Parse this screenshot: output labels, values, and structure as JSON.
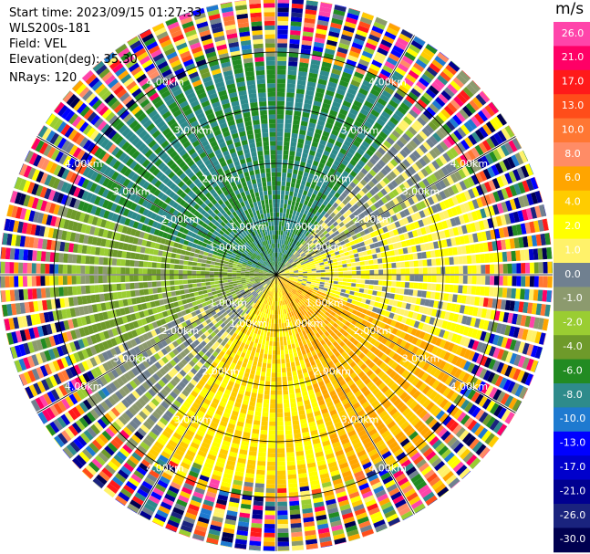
{
  "header": {
    "start_time": "Start time: 2023/09/15 01:27:33",
    "instrument": "WLS200s-181",
    "field": "Field: VEL",
    "elevation": "Elevation(deg): 35.30",
    "nrays": "NRays: 120"
  },
  "chart_data": {
    "type": "heatmap",
    "projection": "polar PPI",
    "title": "",
    "rays": 120,
    "range_rings": [
      {
        "label": "1.00km",
        "km": 1
      },
      {
        "label": "2.00km",
        "km": 2
      },
      {
        "label": "3.00km",
        "km": 3
      },
      {
        "label": "4.00km",
        "km": 4
      }
    ],
    "max_range_km": 5.2,
    "grid": true,
    "colorbar": {
      "unit": "m/s",
      "ticks": [
        "26.0",
        "21.0",
        "17.0",
        "13.0",
        "10.0",
        "8.0",
        "6.0",
        "4.0",
        "2.0",
        "1.0",
        "0.0",
        "-1.0",
        "-2.0",
        "-4.0",
        "-6.0",
        "-8.0",
        "-10.0",
        "-13.0",
        "-17.0",
        "-21.0",
        "-26.0",
        "-30.0"
      ],
      "colors": [
        "#ff44aa",
        "#ff0066",
        "#ff1a1a",
        "#ff4d1a",
        "#ff7733",
        "#ff8c66",
        "#ffa500",
        "#ffcc00",
        "#ffff00",
        "#fff26a",
        "#708090",
        "#8c9a6e",
        "#9acd32",
        "#6e9a2a",
        "#228b22",
        "#2e8b8b",
        "#1e7ad0",
        "#0000ff",
        "#0000cc",
        "#000090",
        "#1a237e",
        "#000050"
      ]
    },
    "sectors": [
      {
        "from_deg": -72,
        "to_deg": 38,
        "velocity": -6.0
      },
      {
        "from_deg": 38,
        "to_deg": 65,
        "velocity": 0.0
      },
      {
        "from_deg": 65,
        "to_deg": 110,
        "velocity": 2.0
      },
      {
        "from_deg": 110,
        "to_deg": 160,
        "velocity": 6.0
      },
      {
        "from_deg": 160,
        "to_deg": 215,
        "velocity": 4.0
      },
      {
        "from_deg": 215,
        "to_deg": 245,
        "velocity": 0.0
      },
      {
        "from_deg": 245,
        "to_deg": 288,
        "velocity": -2.0
      }
    ]
  }
}
